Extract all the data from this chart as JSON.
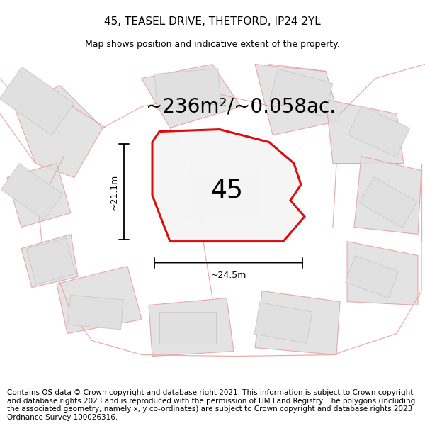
{
  "title": "45, TEASEL DRIVE, THETFORD, IP24 2YL",
  "subtitle": "Map shows position and indicative extent of the property.",
  "area_text": "~236m²/~0.058ac.",
  "number_label": "45",
  "width_label": "~24.5m",
  "height_label": "~21.1m",
  "footer": "Contains OS data © Crown copyright and database right 2021. This information is subject to Crown copyright and database rights 2023 and is reproduced with the permission of HM Land Registry. The polygons (including the associated geometry, namely x, y co-ordinates) are subject to Crown copyright and database rights 2023 Ordnance Survey 100026316.",
  "bg_color": "#f0efef",
  "main_poly_color": "#dd0000",
  "main_poly_fill": "#f5f5f5",
  "gray_fill": "#e0e0e0",
  "gray_edge": "#cccccc",
  "pink_road": "#e8a0a0",
  "title_fontsize": 11,
  "subtitle_fontsize": 9,
  "area_fontsize": 20,
  "number_fontsize": 26,
  "dim_fontsize": 9,
  "footer_fontsize": 7.5
}
